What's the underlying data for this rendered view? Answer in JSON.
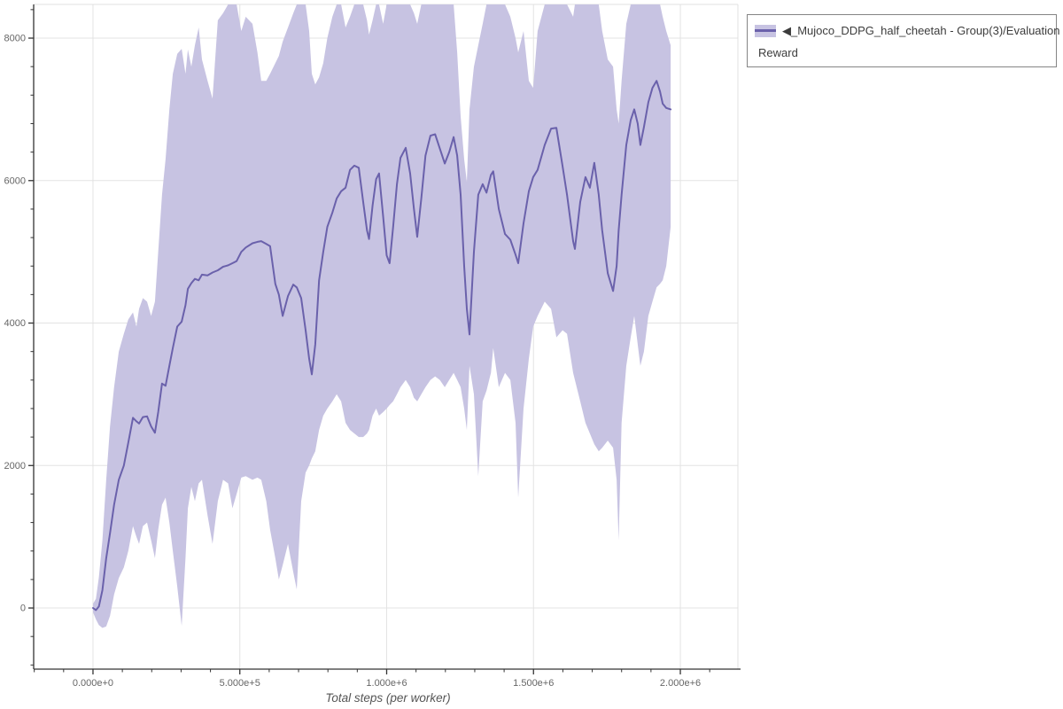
{
  "colors": {
    "line": "#6a61ab",
    "band": "#c7c3e2",
    "grid": "#e3e3e3",
    "plot_border": "#e0e0e0",
    "axis": "#333333",
    "tick_label": "#666666",
    "axis_title": "#555555",
    "legend_border": "#858585",
    "legend_text": "#3c3c3c",
    "background": "#ffffff"
  },
  "legend": {
    "label": "◀_Mujoco_DDPG_half_cheetah - Group(3)/Evaluation Reward",
    "label_line1": "◀_Mujoco_DDPG_half_cheetah - Group(3)/Evaluation",
    "label_line2": "Reward"
  },
  "chart_data": {
    "type": "line",
    "title": "",
    "xlabel": "Total steps (per worker)",
    "ylabel": "",
    "grid": true,
    "legend_position": "top-right-outside",
    "x_axis": {
      "range": [
        -202000,
        2196000
      ],
      "major_ticks": [
        {
          "value": 0,
          "label": "0.000e+0"
        },
        {
          "value": 500000,
          "label": "5.000e+5"
        },
        {
          "value": 1000000,
          "label": "1.000e+6"
        },
        {
          "value": 1500000,
          "label": "1.500e+6"
        },
        {
          "value": 2000000,
          "label": "2.000e+6"
        }
      ],
      "minor_tick_step": 100000,
      "minor_tick_start": -200000,
      "minor_tick_end": 2100000
    },
    "y_axis": {
      "range": [
        -858,
        8473
      ],
      "major_ticks": [
        {
          "value": 0,
          "label": "0"
        },
        {
          "value": 2000,
          "label": "2000"
        },
        {
          "value": 4000,
          "label": "4000"
        },
        {
          "value": 6000,
          "label": "6000"
        },
        {
          "value": 8000,
          "label": "8000"
        }
      ],
      "minor_tick_step": 400,
      "minor_tick_start": -800,
      "minor_tick_end": 8400
    },
    "series": [
      {
        "name": "◀_Mujoco_DDPG_half_cheetah - Group(3)/Evaluation Reward",
        "steps": [
          0,
          10000,
          20000,
          32000,
          45000,
          58000,
          72000,
          88000,
          105000,
          120000,
          136000,
          148000,
          157000,
          170000,
          184000,
          198000,
          211000,
          222000,
          235000,
          247000,
          260000,
          272000,
          287000,
          302000,
          315000,
          323000,
          335000,
          347000,
          360000,
          371000,
          390000,
          407000,
          425000,
          443000,
          460000,
          475000,
          489000,
          505000,
          520000,
          543000,
          560000,
          573000,
          590000,
          603000,
          621000,
          633000,
          646000,
          664000,
          682000,
          694000,
          709000,
          724000,
          736000,
          745000,
          757000,
          770000,
          784000,
          798000,
          815000,
          830000,
          845000,
          860000,
          875000,
          890000,
          905000,
          920000,
          933000,
          940000,
          952000,
          964000,
          974000,
          988000,
          1000000,
          1010000,
          1022000,
          1035000,
          1047000,
          1065000,
          1080000,
          1093000,
          1104000,
          1118000,
          1132000,
          1149000,
          1165000,
          1181000,
          1198000,
          1213000,
          1228000,
          1240000,
          1252000,
          1264000,
          1273000,
          1282000,
          1297000,
          1312000,
          1327000,
          1340000,
          1355000,
          1363000,
          1382000,
          1403000,
          1421000,
          1439000,
          1448000,
          1466000,
          1484000,
          1499000,
          1514000,
          1538000,
          1560000,
          1578000,
          1599000,
          1614000,
          1635000,
          1641000,
          1659000,
          1677000,
          1692000,
          1707000,
          1722000,
          1734000,
          1753000,
          1771000,
          1783000,
          1790000,
          1800000,
          1816000,
          1831000,
          1843000,
          1855000,
          1864000,
          1876000,
          1891000,
          1905000,
          1919000,
          1931000,
          1940000,
          1952000,
          1967000
        ],
        "mean": [
          0,
          -30,
          20,
          250,
          700,
          1050,
          1450,
          1800,
          2000,
          2320,
          2670,
          2620,
          2590,
          2680,
          2690,
          2550,
          2460,
          2750,
          3150,
          3120,
          3400,
          3650,
          3950,
          4020,
          4250,
          4480,
          4560,
          4620,
          4600,
          4680,
          4670,
          4710,
          4740,
          4790,
          4810,
          4840,
          4870,
          5000,
          5060,
          5120,
          5140,
          5150,
          5110,
          5080,
          4550,
          4400,
          4100,
          4380,
          4540,
          4500,
          4350,
          3900,
          3500,
          3280,
          3700,
          4600,
          5000,
          5350,
          5550,
          5750,
          5850,
          5900,
          6150,
          6210,
          6180,
          5700,
          5300,
          5180,
          5650,
          6020,
          6100,
          5500,
          4950,
          4840,
          5350,
          5950,
          6320,
          6460,
          6100,
          5600,
          5210,
          5750,
          6350,
          6630,
          6650,
          6450,
          6240,
          6400,
          6610,
          6350,
          5800,
          4800,
          4200,
          3840,
          5000,
          5800,
          5950,
          5830,
          6080,
          6130,
          5600,
          5250,
          5170,
          4960,
          4840,
          5400,
          5850,
          6050,
          6150,
          6500,
          6730,
          6740,
          6200,
          5800,
          5150,
          5040,
          5700,
          6050,
          5900,
          6250,
          5800,
          5300,
          4700,
          4450,
          4800,
          5300,
          5800,
          6500,
          6850,
          7000,
          6800,
          6500,
          6750,
          7100,
          7300,
          7400,
          7250,
          7080,
          7020,
          7000
        ],
        "lower": [
          -60,
          -160,
          -240,
          -280,
          -260,
          -110,
          190,
          420,
          570,
          800,
          1150,
          1000,
          900,
          1150,
          1200,
          950,
          700,
          1100,
          1450,
          1550,
          1200,
          800,
          300,
          -250,
          700,
          1400,
          1700,
          1500,
          1750,
          1800,
          1300,
          900,
          1500,
          1800,
          1750,
          1400,
          1600,
          1830,
          1850,
          1800,
          1830,
          1800,
          1500,
          1100,
          700,
          400,
          600,
          900,
          500,
          260,
          1500,
          1900,
          2000,
          2100,
          2200,
          2500,
          2700,
          2800,
          2900,
          3000,
          2900,
          2600,
          2500,
          2450,
          2400,
          2400,
          2450,
          2500,
          2700,
          2800,
          2700,
          2750,
          2800,
          2850,
          2900,
          3000,
          3100,
          3200,
          3100,
          2950,
          2900,
          3000,
          3100,
          3200,
          3250,
          3200,
          3100,
          3200,
          3300,
          3200,
          3100,
          2800,
          2500,
          3400,
          3000,
          1850,
          2900,
          3050,
          3300,
          3650,
          3100,
          3300,
          3200,
          2600,
          1550,
          2800,
          3500,
          3950,
          4100,
          4300,
          4200,
          3800,
          3900,
          3850,
          3300,
          3200,
          2900,
          2600,
          2450,
          2300,
          2200,
          2250,
          2350,
          2250,
          1800,
          950,
          2600,
          3400,
          3800,
          4100,
          3700,
          3400,
          3600,
          4100,
          4300,
          4500,
          4550,
          4600,
          4800,
          5350
        ],
        "upper": [
          60,
          130,
          430,
          950,
          1800,
          2550,
          3100,
          3600,
          3850,
          4050,
          4150,
          3950,
          4200,
          4350,
          4300,
          4100,
          4300,
          5000,
          5800,
          6300,
          7000,
          7500,
          7780,
          7850,
          7500,
          7840,
          7600,
          7900,
          8150,
          7700,
          7400,
          7150,
          8250,
          8350,
          8473,
          8473,
          8473,
          8100,
          8300,
          8200,
          7800,
          7400,
          7400,
          7500,
          7650,
          7750,
          7950,
          8150,
          8350,
          8473,
          8473,
          8473,
          8100,
          7500,
          7350,
          7450,
          7650,
          8000,
          8300,
          8473,
          8473,
          8150,
          8300,
          8473,
          8473,
          8473,
          8250,
          8050,
          8250,
          8473,
          8473,
          8200,
          8473,
          8473,
          8473,
          8473,
          8473,
          8473,
          8473,
          8350,
          8200,
          8473,
          8473,
          8473,
          8473,
          8473,
          8473,
          8473,
          8473,
          7800,
          6900,
          6300,
          5980,
          7000,
          7600,
          7900,
          8200,
          8473,
          8473,
          8473,
          8473,
          8473,
          8300,
          8000,
          7800,
          8100,
          7400,
          7300,
          8100,
          8473,
          8473,
          8473,
          8473,
          8473,
          8300,
          8473,
          8473,
          8473,
          8473,
          8473,
          8473,
          8100,
          7700,
          7600,
          7000,
          6800,
          7400,
          8200,
          8473,
          8473,
          8473,
          8473,
          8473,
          8473,
          8473,
          8473,
          8473,
          8300,
          8100,
          7900
        ]
      }
    ]
  }
}
